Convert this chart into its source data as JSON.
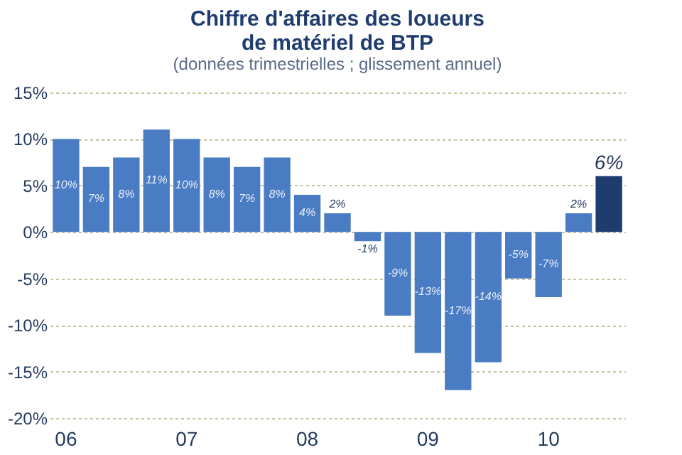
{
  "chart_data": {
    "type": "bar",
    "title": [
      "Chiffre d'affaires des loueurs",
      "de matériel de BTP"
    ],
    "subtitle": "(données trimestrielles ; glissement annuel)",
    "categories": [
      "06",
      null,
      null,
      null,
      "07",
      null,
      null,
      null,
      "08",
      null,
      null,
      null,
      "09",
      null,
      null,
      null,
      "10",
      null,
      null
    ],
    "values": [
      10,
      7,
      8,
      11,
      10,
      8,
      7,
      8,
      4,
      2,
      -1,
      -9,
      -13,
      -17,
      -14,
      -5,
      -7,
      2,
      6
    ],
    "colors": [
      "#4a7cc4",
      "#4a7cc4",
      "#4a7cc4",
      "#4a7cc4",
      "#4a7cc4",
      "#4a7cc4",
      "#4a7cc4",
      "#4a7cc4",
      "#4a7cc4",
      "#4a7cc4",
      "#4a7cc4",
      "#4a7cc4",
      "#4a7cc4",
      "#4a7cc4",
      "#4a7cc4",
      "#4a7cc4",
      "#4a7cc4",
      "#4a7cc4",
      "#1f3c6e"
    ],
    "value_labels": [
      "10%",
      "7%",
      "8%",
      "11%",
      "10%",
      "8%",
      "7%",
      "8%",
      "4%",
      "2%",
      "-1%",
      "-9%",
      "-13%",
      "-17%",
      "-14%",
      "-5%",
      "-7%",
      "2%",
      "6%"
    ],
    "ylim": [
      -20,
      15
    ],
    "yticks": [
      {
        "value": -20,
        "label": "-20%"
      },
      {
        "value": -15,
        "label": "-15%"
      },
      {
        "value": -10,
        "label": "-10%"
      },
      {
        "value": -5,
        "label": "-5%"
      },
      {
        "value": 0,
        "label": "0%"
      },
      {
        "value": 5,
        "label": "5%"
      },
      {
        "value": 10,
        "label": "10%"
      },
      {
        "value": 15,
        "label": "15%"
      }
    ],
    "grid": "y"
  }
}
